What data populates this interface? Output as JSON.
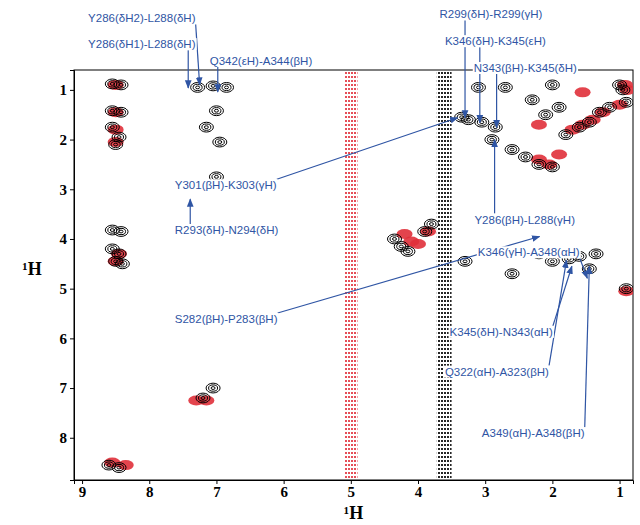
{
  "chart_data": {
    "type": "scatter",
    "marker": "contour",
    "x_label": "¹H",
    "y_label": "¹H",
    "xlim": [
      9.12,
      0.8
    ],
    "ylim": [
      0.6,
      8.85
    ],
    "xticks": [
      9,
      8,
      7,
      6,
      5,
      4,
      3,
      2,
      1
    ],
    "yticks": [
      1,
      2,
      3,
      4,
      5,
      6,
      7,
      8
    ],
    "grid": false,
    "bands": [
      {
        "x0": 5.1,
        "x1": 4.9,
        "color": "#e0303a"
      },
      {
        "x0": 3.72,
        "x1": 3.5,
        "color": "#000000"
      }
    ],
    "series": [
      {
        "color": "#e0303a",
        "x": [
          8.5,
          8.5,
          8.5,
          8.5,
          8.45,
          8.5,
          8.55,
          8.35,
          7.15,
          7.3,
          4.2,
          4.1,
          4.0,
          3.85,
          2.2,
          2.05,
          1.9,
          1.7,
          1.55,
          1.4,
          1.25,
          0.92,
          0.88,
          0.9,
          1.55,
          2.2,
          1.0
        ],
        "y": [
          0.9,
          1.45,
          1.8,
          2.05,
          4.3,
          4.45,
          8.5,
          8.55,
          7.25,
          7.25,
          3.9,
          4.05,
          4.1,
          3.85,
          2.4,
          2.5,
          2.3,
          1.8,
          1.7,
          1.6,
          1.45,
          0.9,
          1.0,
          5.05,
          1.05,
          1.7,
          1.3
        ]
      },
      {
        "color": "#000000",
        "x": [
          8.55,
          8.42,
          8.55,
          8.42,
          8.55,
          8.45,
          8.5,
          8.55,
          8.42,
          8.55,
          8.45,
          8.5,
          8.4,
          8.6,
          8.45,
          7.2,
          7.05,
          7.28,
          7.05,
          6.85,
          7.0,
          7.15,
          6.95,
          7.0,
          4.35,
          4.25,
          4.15,
          3.9,
          3.8,
          2.2,
          2.0,
          1.75,
          1.6,
          1.45,
          1.35,
          2.6,
          3.3,
          0.9,
          3.35,
          3.25,
          3.05,
          2.85,
          2.9,
          2.6,
          2.4,
          2.2,
          2.0,
          1.8,
          1.6,
          1.45,
          1.3,
          1.15,
          0.95,
          1.0,
          0.9,
          1.9,
          2.1,
          2.3,
          2.7,
          3.1,
          2.0
        ],
        "y": [
          0.88,
          0.9,
          1.42,
          1.45,
          1.75,
          1.95,
          2.1,
          3.82,
          3.85,
          4.2,
          4.3,
          4.45,
          4.5,
          8.55,
          8.6,
          7.2,
          7.0,
          0.95,
          0.92,
          0.95,
          1.42,
          1.75,
          2.05,
          2.75,
          4.0,
          4.15,
          4.25,
          3.85,
          3.7,
          4.3,
          4.45,
          4.4,
          4.35,
          4.6,
          4.3,
          4.7,
          4.45,
          5.0,
          1.55,
          1.6,
          1.65,
          1.75,
          2.0,
          2.2,
          2.35,
          2.5,
          2.55,
          1.9,
          1.75,
          1.65,
          1.45,
          1.35,
          1.0,
          0.9,
          1.25,
          1.35,
          1.5,
          1.2,
          0.95,
          0.95,
          0.9
        ]
      }
    ],
    "annotations": [
      {
        "text": "Y286(δH2)-L288(δH)",
        "text_x": 8.91,
        "text_y": -0.36,
        "x": 7.25,
        "y": 0.9
      },
      {
        "text": "Y286(δH1)-L288(δH)",
        "text_x": 8.91,
        "text_y": 0.16,
        "x": 7.42,
        "y": 0.96
      },
      {
        "text": "Q342(εH)-A344(βH)",
        "text_x": 7.1,
        "text_y": 0.5,
        "x": 6.98,
        "y": 1.04
      },
      {
        "text": "Y301(βH)-K303(γH)",
        "text_x": 7.62,
        "text_y": 3.0,
        "x": 3.41,
        "y": 1.56
      },
      {
        "text": "R293(δH)-N294(δH)",
        "text_x": 7.62,
        "text_y": 3.9,
        "x": 7.39,
        "y": 3.2
      },
      {
        "text": "S282(βH)-P283(βH)",
        "text_x": 7.62,
        "text_y": 5.69,
        "x": 2.19,
        "y": 3.95
      },
      {
        "text": "R299(δH)-R299(γH)",
        "text_x": 3.68,
        "text_y": -0.44,
        "x": 3.3,
        "y": 1.56
      },
      {
        "text": "K346(δH)-K345(εH)",
        "text_x": 3.6,
        "text_y": 0.1,
        "x": 3.08,
        "y": 1.66
      },
      {
        "text": "N343(βH)-K345(δH)",
        "text_x": 3.17,
        "text_y": 0.64,
        "x": 2.83,
        "y": 1.76
      },
      {
        "text": "Y286(βH)-L288(γH)",
        "text_x": 3.16,
        "text_y": 3.69,
        "x": 2.86,
        "y": 2.0
      },
      {
        "text": "K346(γH)-A348(αH)",
        "text_x": 3.11,
        "text_y": 4.35,
        "x": 1.48,
        "y": 4.79
      },
      {
        "text": "K345(δH)-N343(αH)",
        "text_x": 3.53,
        "text_y": 5.95,
        "x": 1.71,
        "y": 4.55
      },
      {
        "text": "Q322(αH)-A323(βH)",
        "text_x": 3.6,
        "text_y": 6.75,
        "x": 1.79,
        "y": 4.43
      },
      {
        "text": "A349(αH)-A348(βH)",
        "text_x": 3.05,
        "text_y": 7.99,
        "x": 1.45,
        "y": 4.55
      }
    ]
  }
}
